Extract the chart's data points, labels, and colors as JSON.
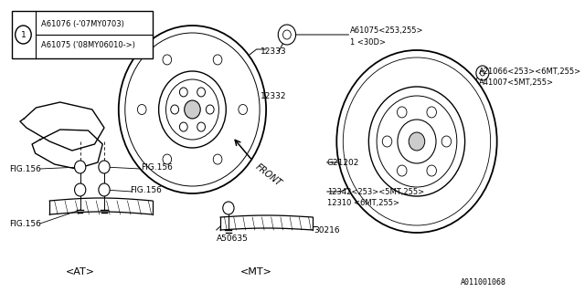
{
  "bg_color": "#ffffff",
  "line_color": "#000000",
  "watermark": "A011001068",
  "legend_line1": "A61076 (-'07MY0703)",
  "legend_line2": "A61075 ('08MY06010->)",
  "label_A61075": "A61075<253,255>",
  "label_1_30D": "1 <30D>",
  "label_12333": "12333",
  "label_12332": "12332",
  "label_A21066": "A21066<253><6MT,255>",
  "label_A41007": "A41007<5MT,255>",
  "label_G21202": "G21202",
  "label_12342": "12342<253><5MT,255>",
  "label_12310": "12310 <6MT,255>",
  "label_FIG156": "FIG.156",
  "label_A50635": "A50635",
  "label_30216": "30216",
  "label_AT": "<AT>",
  "label_MT": "<MT>",
  "label_FRONT": "FRONT"
}
